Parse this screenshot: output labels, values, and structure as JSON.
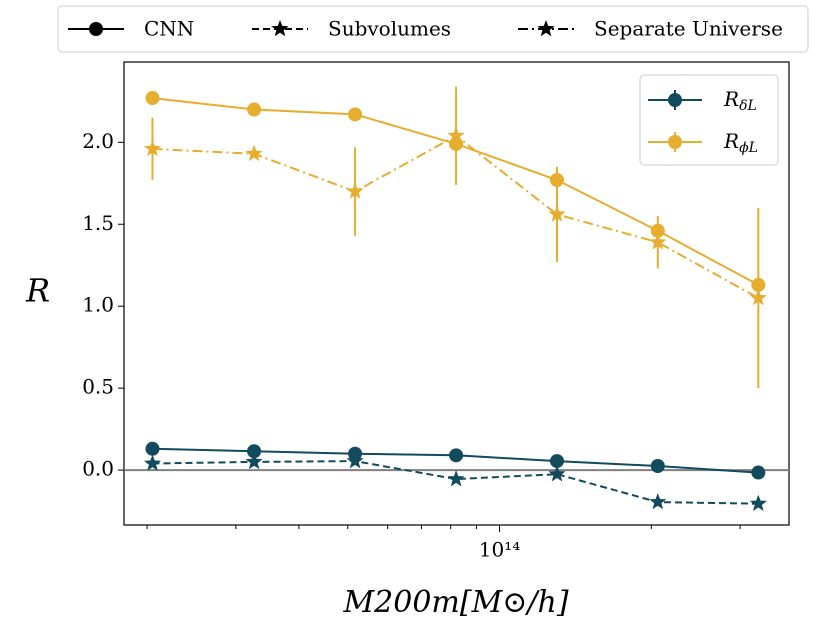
{
  "chart_data": {
    "type": "line",
    "xlabel": "M200m[M⊙/h]",
    "ylabel": "R",
    "xscale": "log",
    "xlim": [
      18000000000000.0,
      375000000000000.0
    ],
    "ylim": [
      -0.335,
      2.49
    ],
    "xticks": [
      {
        "value": 100000000000000.0,
        "label": "10¹⁴"
      }
    ],
    "xminorticks": [
      20000000000000.0,
      30000000000000.0,
      40000000000000.0,
      50000000000000.0,
      60000000000000.0,
      70000000000000.0,
      80000000000000.0,
      90000000000000.0,
      200000000000000.0,
      300000000000000.0
    ],
    "yticks": [
      {
        "value": 0,
        "label": "0.0"
      },
      0.5,
      {
        "value": 1,
        "label": "1.0"
      },
      1.5,
      {
        "value": 2,
        "label": "2.0"
      }
    ],
    "hline": 0,
    "hline_color": "#808080",
    "x": [
      20500000000000.0,
      32600000000000.0,
      51700000000000.0,
      82000000000000.0,
      130000000000000.0,
      206000000000000.0,
      326000000000000.0
    ],
    "styles": [
      {
        "name": "CNN",
        "dash": "solid",
        "marker": "circle"
      },
      {
        "name": "Subvolumes",
        "dash": "dashed",
        "marker": "star"
      },
      {
        "name": "Separate Universe",
        "dash": "dashdot",
        "marker": "star"
      }
    ],
    "quantities": [
      {
        "name": "RδL",
        "color": "#124a5e"
      },
      {
        "name": "RϕL",
        "color": "#e6ad2e"
      }
    ],
    "series": [
      {
        "style": 0,
        "quantity": 1,
        "values": [
          2.27,
          2.2,
          2.17,
          1.99,
          1.77,
          1.46,
          1.13
        ]
      },
      {
        "style": 2,
        "quantity": 1,
        "values": [
          1.96,
          1.93,
          1.7,
          2.04,
          1.56,
          1.39,
          1.05
        ],
        "errors": [
          0.19,
          0.02,
          0.27,
          0.3,
          0.29,
          0.16,
          0.55
        ]
      },
      {
        "style": 0,
        "quantity": 0,
        "values": [
          0.13,
          0.115,
          0.1,
          0.09,
          0.055,
          0.025,
          -0.015
        ]
      },
      {
        "style": 1,
        "quantity": 0,
        "values": [
          0.04,
          0.05,
          0.055,
          -0.055,
          -0.025,
          -0.195,
          -0.205
        ]
      }
    ]
  }
}
